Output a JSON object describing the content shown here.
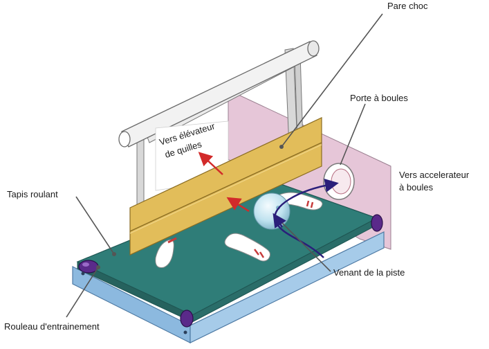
{
  "labels": {
    "pare_choc": "Pare choc",
    "porte_boules": "Porte à boules",
    "vers_accelerateur_1": "Vers accelerateur",
    "vers_accelerateur_2": "à boules",
    "tapis_roulant": "Tapis roulant",
    "venant_piste": "Venant de la piste",
    "rouleau": "Rouleau d'entrainement",
    "vers_elevateur_1": "Vers élévateur",
    "vers_elevateur_2": "de quilles"
  },
  "colors": {
    "belt": "#2f7d78",
    "frame": "#8cb9df",
    "bumper": "#e2bd5a",
    "side_plate": "#e6c6d8",
    "ball": "#bfe2ef",
    "arrow_red": "#d22a2a",
    "arrow_navy": "#2a1f7a",
    "roller": "#5a2a8a"
  }
}
